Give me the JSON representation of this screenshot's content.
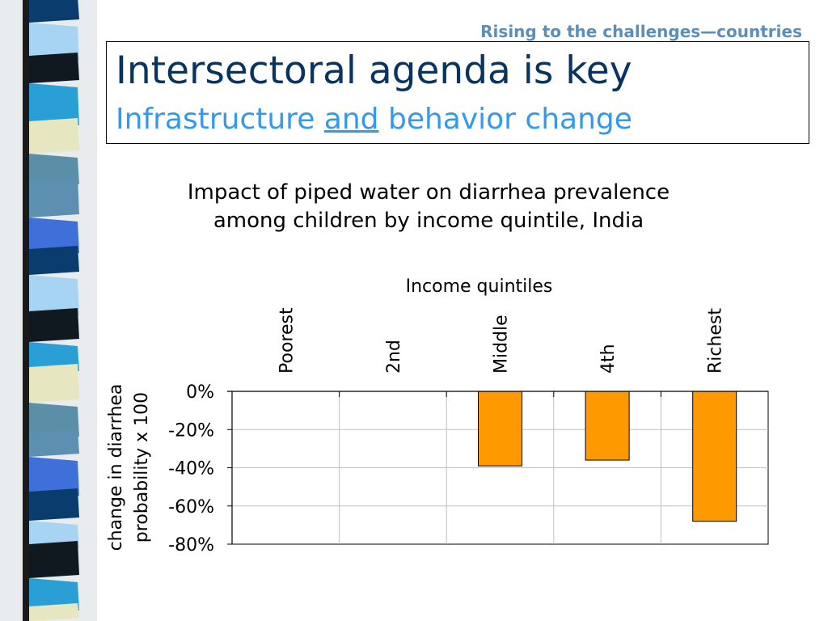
{
  "header": {
    "kicker": "Rising to the challenges—countries",
    "title": "Intersectoral agenda is key",
    "subtitle_before": "Infrastructure ",
    "subtitle_emphasis": "and",
    "subtitle_after": " behavior change"
  },
  "colors": {
    "title": "#0a3460",
    "subtitle": "#3399ee",
    "kicker": "#5b8fb9",
    "bar_fill": "#ff9900",
    "gridline": "#bfbfbf"
  },
  "chart_data": {
    "type": "bar",
    "title_lines": [
      "Impact of piped water on diarrhea prevalence",
      "among children by income quintile, India"
    ],
    "xlabel": "Income quintiles",
    "ylabel_lines": [
      "change in diarrhea",
      "probability x 100"
    ],
    "categories": [
      "Poorest",
      "2nd",
      "Middle",
      "4th",
      "Richest"
    ],
    "values": [
      0,
      0,
      -39,
      -36,
      -68
    ],
    "ylim": [
      -80,
      0
    ],
    "yticks": [
      0,
      -20,
      -40,
      -60,
      -80
    ],
    "ytick_labels": [
      "0%",
      "-20%",
      "-40%",
      "-60%",
      "-80%"
    ],
    "category_labels_position": "top, rotated",
    "grid": true
  }
}
